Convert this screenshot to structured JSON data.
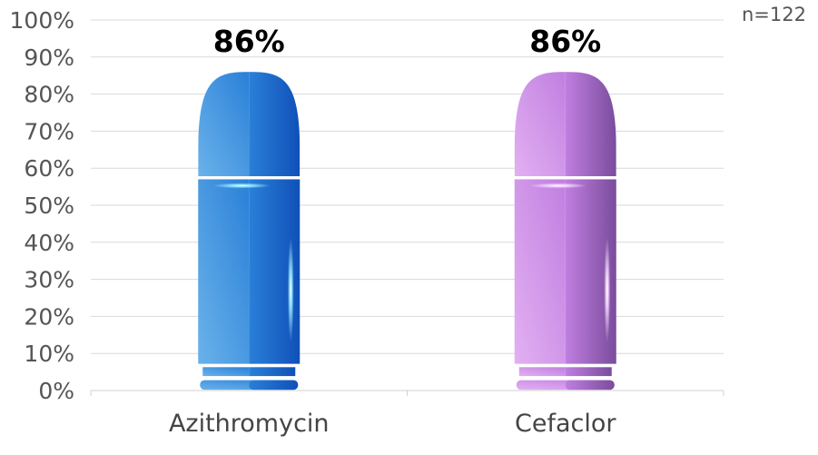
{
  "chart_data": {
    "type": "bar",
    "categories": [
      "Azithromycin",
      "Cefaclor"
    ],
    "values": [
      86,
      86
    ],
    "value_labels": [
      "86%",
      "86%"
    ],
    "ylim": [
      0,
      100
    ],
    "yticks": [
      "0%",
      "10%",
      "20%",
      "30%",
      "40%",
      "50%",
      "60%",
      "70%",
      "80%",
      "90%",
      "100%"
    ],
    "grid": true,
    "annotation": "n=122",
    "bar_style": "capsule",
    "colors": {
      "Azithromycin": {
        "light": "#6ab2ea",
        "mid": "#2a80d8",
        "dark": "#1050b8",
        "glow": "#9ff0ff"
      },
      "Cefaclor": {
        "light": "#e2b0f2",
        "mid": "#c07fe0",
        "dark": "#7a4c9c",
        "glow": "#f6dcff"
      }
    }
  }
}
